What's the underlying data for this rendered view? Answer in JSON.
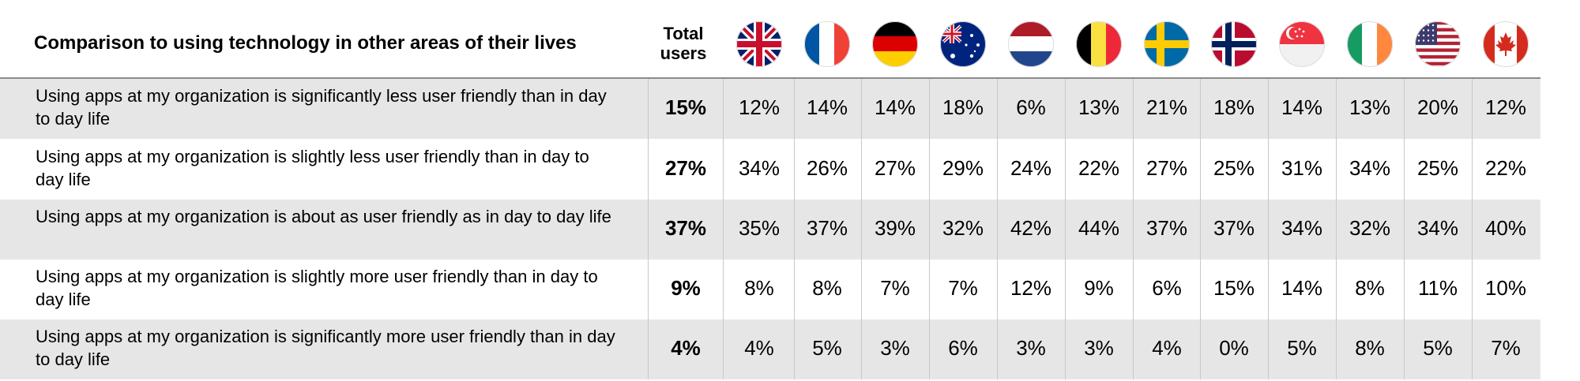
{
  "chart_data": {
    "type": "table",
    "title": "Comparison to using technology in other areas of their lives",
    "columns": {
      "total_label": "Total users",
      "countries": [
        "United Kingdom",
        "France",
        "Germany",
        "Australia",
        "Netherlands",
        "Belgium",
        "Sweden",
        "Norway",
        "Singapore",
        "Ireland",
        "United States",
        "Canada"
      ]
    },
    "rows": [
      {
        "label": "Using apps at my organization is significantly less user friendly than in day to day life",
        "total": "15%",
        "values": [
          "12%",
          "14%",
          "14%",
          "18%",
          "6%",
          "13%",
          "21%",
          "18%",
          "14%",
          "13%",
          "20%",
          "12%"
        ]
      },
      {
        "label": "Using apps at my organization is slightly less user friendly than in day to day life",
        "total": "27%",
        "values": [
          "34%",
          "26%",
          "27%",
          "29%",
          "24%",
          "22%",
          "27%",
          "25%",
          "31%",
          "34%",
          "25%",
          "22%"
        ]
      },
      {
        "label": "Using apps at my organization is about as user friendly as in day to day life",
        "total": "37%",
        "values": [
          "35%",
          "37%",
          "39%",
          "32%",
          "42%",
          "44%",
          "37%",
          "37%",
          "34%",
          "32%",
          "34%",
          "40%"
        ]
      },
      {
        "label": "Using apps at my organization is slightly more user friendly than in day to day life",
        "total": "9%",
        "values": [
          "8%",
          "8%",
          "7%",
          "7%",
          "12%",
          "9%",
          "6%",
          "15%",
          "14%",
          "8%",
          "11%",
          "10%"
        ]
      },
      {
        "label": "Using apps at my organization is significantly more user friendly than in day to day life",
        "total": "4%",
        "values": [
          "4%",
          "5%",
          "3%",
          "6%",
          "3%",
          "3%",
          "4%",
          "0%",
          "5%",
          "8%",
          "5%",
          "7%"
        ]
      }
    ]
  },
  "colors": {
    "row_shade": "#e6e6e6",
    "divider": "#8a8a8a",
    "text": "#000000"
  },
  "flag_icons": [
    "uk-flag-icon",
    "france-flag-icon",
    "germany-flag-icon",
    "australia-flag-icon",
    "netherlands-flag-icon",
    "belgium-flag-icon",
    "sweden-flag-icon",
    "norway-flag-icon",
    "singapore-flag-icon",
    "ireland-flag-icon",
    "usa-flag-icon",
    "canada-flag-icon"
  ]
}
